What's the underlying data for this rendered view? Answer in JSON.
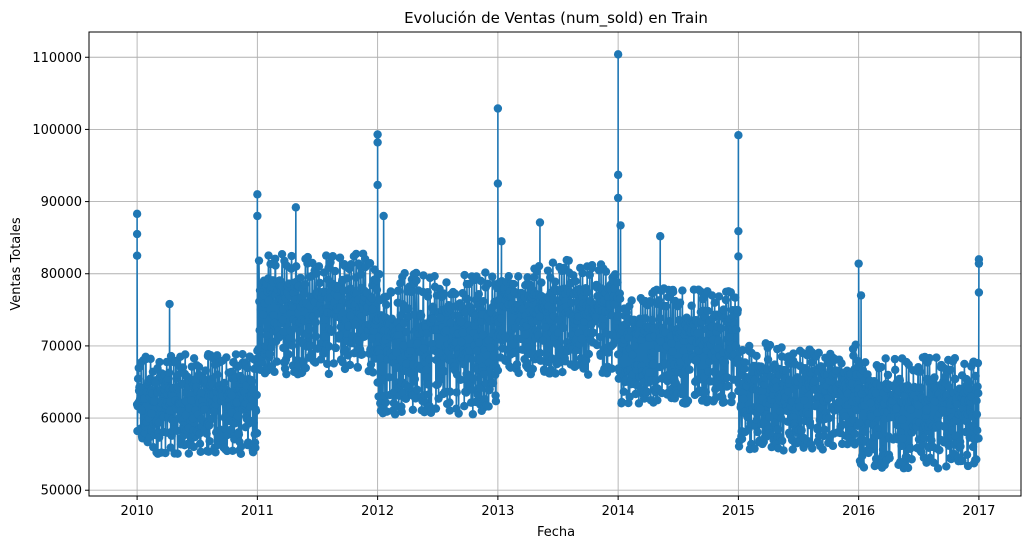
{
  "chart_data": {
    "type": "line",
    "title": "Evolución de Ventas (num_sold) en Train",
    "xlabel": "Fecha",
    "ylabel": "Ventas Totales",
    "x_tick_labels": [
      "2010",
      "2011",
      "2012",
      "2013",
      "2014",
      "2015",
      "2016",
      "2017"
    ],
    "y_tick_labels": [
      "50000",
      "60000",
      "70000",
      "80000",
      "90000",
      "100000",
      "110000"
    ],
    "x_ticks": [
      2010,
      2011,
      2012,
      2013,
      2014,
      2015,
      2016,
      2017
    ],
    "y_ticks": [
      50000,
      60000,
      70000,
      80000,
      90000,
      100000,
      110000
    ],
    "xlim": [
      2009.6,
      2017.35
    ],
    "ylim": [
      49200,
      113500
    ],
    "grid": true,
    "marker": "circle",
    "line_color": "#1f77b4",
    "daily_pattern_note_free": true,
    "series": [
      {
        "x_start_year": 2010,
        "x_end_year": 2017,
        "segments": [
          {
            "from": 2010.0,
            "to": 2011.0,
            "low": 55000,
            "high": 69000
          },
          {
            "from": 2011.0,
            "to": 2012.0,
            "low": 66000,
            "high": 83000
          },
          {
            "from": 2012.0,
            "to": 2013.0,
            "low": 60500,
            "high": 80500
          },
          {
            "from": 2013.0,
            "to": 2014.0,
            "low": 66000,
            "high": 82000
          },
          {
            "from": 2014.0,
            "to": 2015.0,
            "low": 62000,
            "high": 78000
          },
          {
            "from": 2015.0,
            "to": 2016.0,
            "low": 55500,
            "high": 70500
          },
          {
            "from": 2016.0,
            "to": 2017.0,
            "low": 53000,
            "high": 68500
          }
        ],
        "peaks": [
          {
            "x": 2010.0,
            "y": 88300
          },
          {
            "x": 2010.0,
            "y": 85500
          },
          {
            "x": 2010.0,
            "y": 82500
          },
          {
            "x": 2010.27,
            "y": 75800
          },
          {
            "x": 2011.0,
            "y": 91000
          },
          {
            "x": 2011.0,
            "y": 88000
          },
          {
            "x": 2011.32,
            "y": 89200
          },
          {
            "x": 2012.0,
            "y": 99300
          },
          {
            "x": 2012.0,
            "y": 98200
          },
          {
            "x": 2012.0,
            "y": 92300
          },
          {
            "x": 2012.05,
            "y": 88000
          },
          {
            "x": 2013.0,
            "y": 102900
          },
          {
            "x": 2013.0,
            "y": 92500
          },
          {
            "x": 2013.03,
            "y": 84500
          },
          {
            "x": 2013.35,
            "y": 87100
          },
          {
            "x": 2014.0,
            "y": 110400
          },
          {
            "x": 2014.0,
            "y": 93700
          },
          {
            "x": 2014.0,
            "y": 90500
          },
          {
            "x": 2014.02,
            "y": 86700
          },
          {
            "x": 2014.35,
            "y": 85200
          },
          {
            "x": 2015.0,
            "y": 99200
          },
          {
            "x": 2015.0,
            "y": 85900
          },
          {
            "x": 2015.0,
            "y": 82400
          },
          {
            "x": 2016.0,
            "y": 81400
          },
          {
            "x": 2016.02,
            "y": 77000
          },
          {
            "x": 2017.0,
            "y": 82000
          },
          {
            "x": 2017.0,
            "y": 81400
          },
          {
            "x": 2017.0,
            "y": 77400
          }
        ]
      }
    ]
  }
}
